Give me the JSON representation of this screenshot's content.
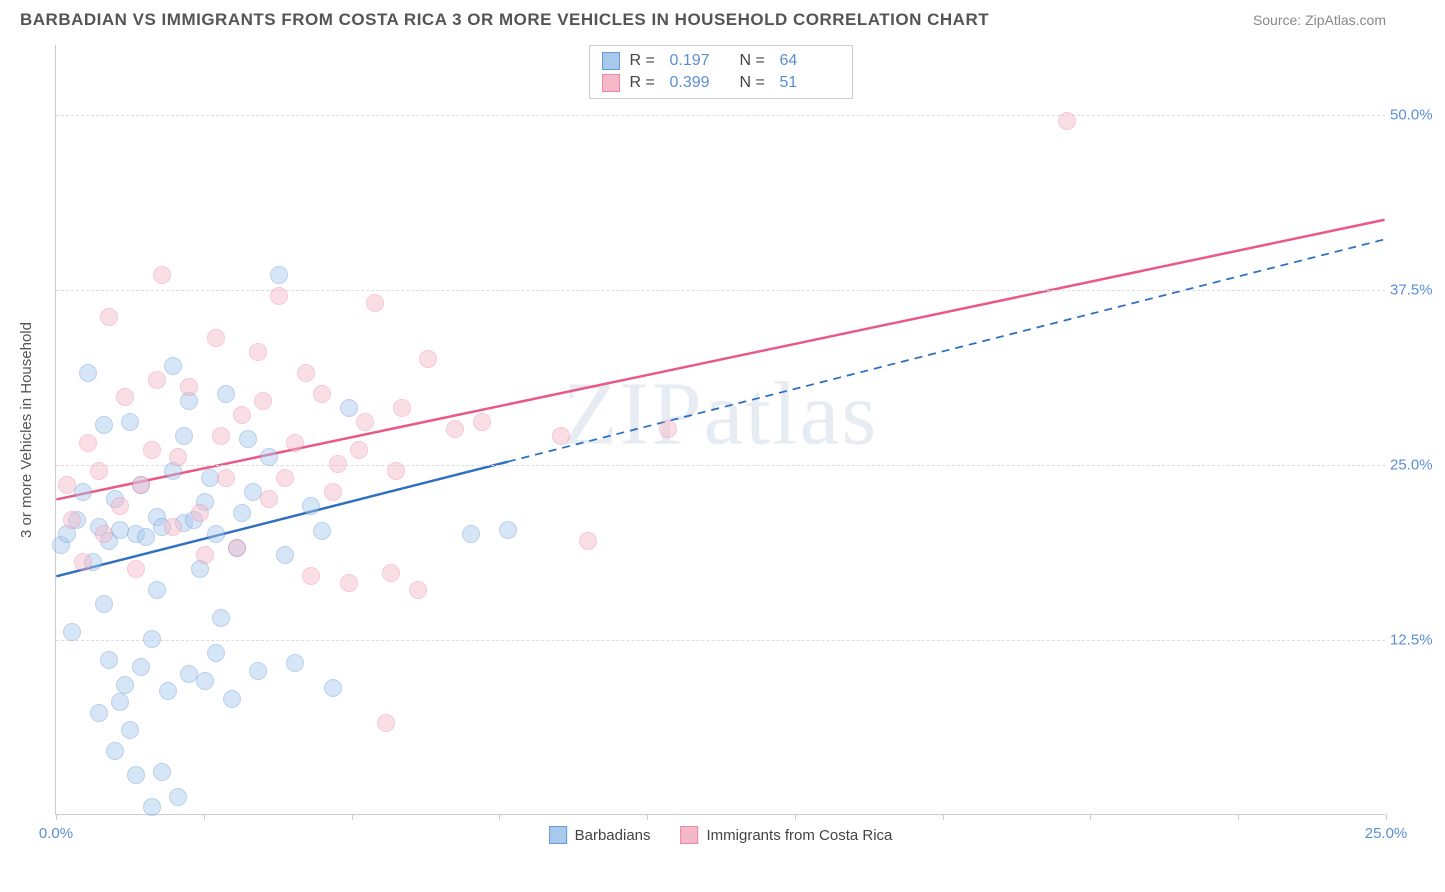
{
  "header": {
    "title": "BARBADIAN VS IMMIGRANTS FROM COSTA RICA 3 OR MORE VEHICLES IN HOUSEHOLD CORRELATION CHART",
    "source": "Source: ZipAtlas.com"
  },
  "watermark": {
    "z": "ZIP",
    "rest": "atlas"
  },
  "chart": {
    "type": "scatter",
    "ylabel": "3 or more Vehicles in Household",
    "background_color": "#ffffff",
    "grid_color": "#dddddd",
    "axis_color": "#cccccc",
    "tick_label_color": "#5a8fd6",
    "xlim": [
      0,
      25
    ],
    "ylim": [
      0,
      55
    ],
    "yticks": [
      {
        "v": 12.5,
        "label": "12.5%"
      },
      {
        "v": 25.0,
        "label": "25.0%"
      },
      {
        "v": 37.5,
        "label": "37.5%"
      },
      {
        "v": 50.0,
        "label": "50.0%"
      }
    ],
    "xticks_minor": [
      0,
      2.78,
      5.56,
      8.33,
      11.11,
      13.89,
      16.67,
      19.44,
      22.22,
      25
    ],
    "xlabels": [
      {
        "v": 0,
        "label": "0.0%"
      },
      {
        "v": 25,
        "label": "25.0%"
      }
    ],
    "marker_radius": 9,
    "marker_opacity": 0.45,
    "series": [
      {
        "name": "Barbadians",
        "color_fill": "#a8c8ec",
        "color_stroke": "#6699d8",
        "R": "0.197",
        "N": "64",
        "trend": {
          "x1": 0,
          "y1": 17.0,
          "x2": 8.5,
          "y2": 25.2,
          "x2_extrap": 25,
          "y2_extrap": 41.1,
          "color": "#2e6fc0",
          "width": 2.5
        },
        "points": [
          [
            0.1,
            19.2
          ],
          [
            0.2,
            20.0
          ],
          [
            0.4,
            21.0
          ],
          [
            0.6,
            31.5
          ],
          [
            0.8,
            7.2
          ],
          [
            0.8,
            20.5
          ],
          [
            0.9,
            27.8
          ],
          [
            1.0,
            11.0
          ],
          [
            1.0,
            19.5
          ],
          [
            1.1,
            4.5
          ],
          [
            1.2,
            8.0
          ],
          [
            1.2,
            20.3
          ],
          [
            1.3,
            9.2
          ],
          [
            1.4,
            6.0
          ],
          [
            1.5,
            2.8
          ],
          [
            1.5,
            20.0
          ],
          [
            1.6,
            10.5
          ],
          [
            1.7,
            19.8
          ],
          [
            1.8,
            0.5
          ],
          [
            1.8,
            12.5
          ],
          [
            1.9,
            21.2
          ],
          [
            2.0,
            3.0
          ],
          [
            2.0,
            20.5
          ],
          [
            2.1,
            8.8
          ],
          [
            2.2,
            32.0
          ],
          [
            2.3,
            1.2
          ],
          [
            2.4,
            20.8
          ],
          [
            2.5,
            29.5
          ],
          [
            2.5,
            10.0
          ],
          [
            2.6,
            21.0
          ],
          [
            2.8,
            9.5
          ],
          [
            2.8,
            22.3
          ],
          [
            3.0,
            20.0
          ],
          [
            3.0,
            11.5
          ],
          [
            3.2,
            30.0
          ],
          [
            3.3,
            8.2
          ],
          [
            3.5,
            21.5
          ],
          [
            3.6,
            26.8
          ],
          [
            3.8,
            10.2
          ],
          [
            4.0,
            25.5
          ],
          [
            4.2,
            38.5
          ],
          [
            4.5,
            10.8
          ],
          [
            4.8,
            22.0
          ],
          [
            5.0,
            20.2
          ],
          [
            5.2,
            9.0
          ],
          [
            5.5,
            29.0
          ],
          [
            2.7,
            17.5
          ],
          [
            3.1,
            14.0
          ],
          [
            1.6,
            23.5
          ],
          [
            2.2,
            24.5
          ],
          [
            0.5,
            23.0
          ],
          [
            0.7,
            18.0
          ],
          [
            1.4,
            28.0
          ],
          [
            1.9,
            16.0
          ],
          [
            0.3,
            13.0
          ],
          [
            2.4,
            27.0
          ],
          [
            3.4,
            19.0
          ],
          [
            4.3,
            18.5
          ],
          [
            1.1,
            22.5
          ],
          [
            0.9,
            15.0
          ],
          [
            2.9,
            24.0
          ],
          [
            3.7,
            23.0
          ],
          [
            7.8,
            20.0
          ],
          [
            8.5,
            20.3
          ]
        ]
      },
      {
        "name": "Immigrants from Costa Rica",
        "color_fill": "#f5b8c8",
        "color_stroke": "#e88aa5",
        "R": "0.399",
        "N": "51",
        "trend": {
          "x1": 0,
          "y1": 22.5,
          "x2": 25,
          "y2": 42.5,
          "color": "#e85a85",
          "width": 2.5
        },
        "points": [
          [
            0.2,
            23.5
          ],
          [
            0.5,
            18.0
          ],
          [
            0.8,
            24.5
          ],
          [
            1.0,
            35.5
          ],
          [
            1.2,
            22.0
          ],
          [
            1.5,
            17.5
          ],
          [
            1.8,
            26.0
          ],
          [
            2.0,
            38.5
          ],
          [
            2.2,
            20.5
          ],
          [
            2.5,
            30.5
          ],
          [
            2.8,
            18.5
          ],
          [
            3.0,
            34.0
          ],
          [
            3.2,
            24.0
          ],
          [
            3.5,
            28.5
          ],
          [
            3.8,
            33.0
          ],
          [
            4.0,
            22.5
          ],
          [
            4.2,
            37.0
          ],
          [
            4.5,
            26.5
          ],
          [
            4.8,
            17.0
          ],
          [
            5.0,
            30.0
          ],
          [
            5.3,
            25.0
          ],
          [
            5.5,
            16.5
          ],
          [
            5.8,
            28.0
          ],
          [
            6.0,
            36.5
          ],
          [
            6.3,
            17.2
          ],
          [
            6.5,
            29.0
          ],
          [
            6.8,
            16.0
          ],
          [
            7.0,
            32.5
          ],
          [
            7.5,
            27.5
          ],
          [
            8.0,
            28.0
          ],
          [
            9.5,
            27.0
          ],
          [
            10.0,
            19.5
          ],
          [
            11.5,
            27.5
          ],
          [
            19.0,
            49.5
          ],
          [
            6.2,
            6.5
          ],
          [
            0.3,
            21.0
          ],
          [
            0.6,
            26.5
          ],
          [
            0.9,
            20.0
          ],
          [
            1.3,
            29.8
          ],
          [
            1.6,
            23.5
          ],
          [
            1.9,
            31.0
          ],
          [
            2.3,
            25.5
          ],
          [
            2.7,
            21.5
          ],
          [
            3.1,
            27.0
          ],
          [
            3.4,
            19.0
          ],
          [
            3.9,
            29.5
          ],
          [
            4.3,
            24.0
          ],
          [
            4.7,
            31.5
          ],
          [
            5.2,
            23.0
          ],
          [
            5.7,
            26.0
          ],
          [
            6.4,
            24.5
          ]
        ]
      }
    ],
    "legend_top_labels": {
      "R": "R  =",
      "N": "N  ="
    },
    "legend_bottom": [
      {
        "label": "Barbadians",
        "series": 0
      },
      {
        "label": "Immigrants from Costa Rica",
        "series": 1
      }
    ]
  }
}
